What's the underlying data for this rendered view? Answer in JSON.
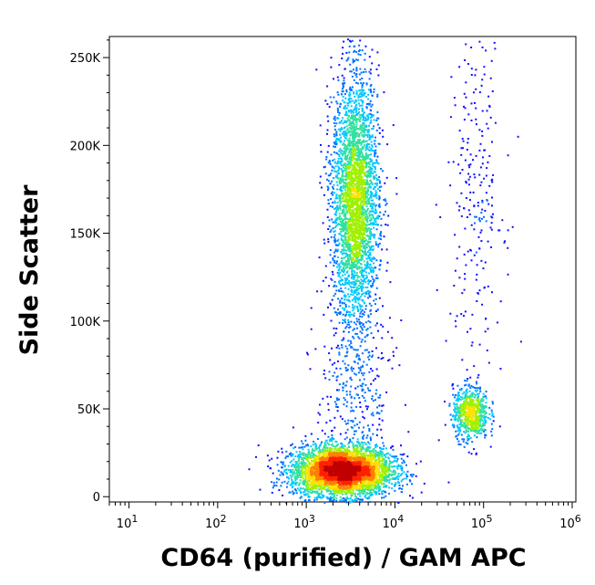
{
  "chart_data": {
    "type": "scatter",
    "style": "flow-cytometry-density-dot-plot",
    "xlabel": "CD64 (purified) / GAM APC",
    "ylabel": "Side Scatter",
    "x_scale": "log",
    "xlim": [
      6,
      1100000.0
    ],
    "y_scale": "linear",
    "ylim": [
      -3000,
      262000
    ],
    "x_ticks": [
      {
        "value": 10,
        "label": "10",
        "exp": "1"
      },
      {
        "value": 100,
        "label": "10",
        "exp": "2"
      },
      {
        "value": 1000,
        "label": "10",
        "exp": "3"
      },
      {
        "value": 10000,
        "label": "10",
        "exp": "4"
      },
      {
        "value": 100000,
        "label": "10",
        "exp": "5"
      },
      {
        "value": 1000000,
        "label": "10",
        "exp": "6"
      }
    ],
    "y_ticks": [
      {
        "value": 0,
        "label": "0"
      },
      {
        "value": 50000,
        "label": "50K"
      },
      {
        "value": 100000,
        "label": "100K"
      },
      {
        "value": 150000,
        "label": "150K"
      },
      {
        "value": 200000,
        "label": "200K"
      },
      {
        "value": 250000,
        "label": "250K"
      }
    ],
    "populations": [
      {
        "center_x": 2500,
        "center_y": 15000,
        "spread_log_x": 0.28,
        "spread_y": 7000,
        "events": 4200
      },
      {
        "center_x": 3500,
        "center_y": 170000,
        "spread_log_x": 0.13,
        "spread_y": 35000,
        "events": 3200
      },
      {
        "center_x": 70000,
        "center_y": 48000,
        "spread_log_x": 0.1,
        "spread_y": 7500,
        "events": 700
      },
      {
        "center_x": 80000,
        "center_y": 175000,
        "spread_log_x": 0.16,
        "spread_y": 50000,
        "events": 250
      },
      {
        "center_x": 3500,
        "center_y": 60000,
        "spread_log_x": 0.22,
        "spread_y": 30000,
        "events": 350
      }
    ],
    "density_colors": [
      "#1010ff",
      "#0070ff",
      "#00c8ff",
      "#30e0a0",
      "#a0f000",
      "#ffe000",
      "#ff8000",
      "#ff2000",
      "#c00000"
    ],
    "grid": false,
    "legend": "none"
  }
}
